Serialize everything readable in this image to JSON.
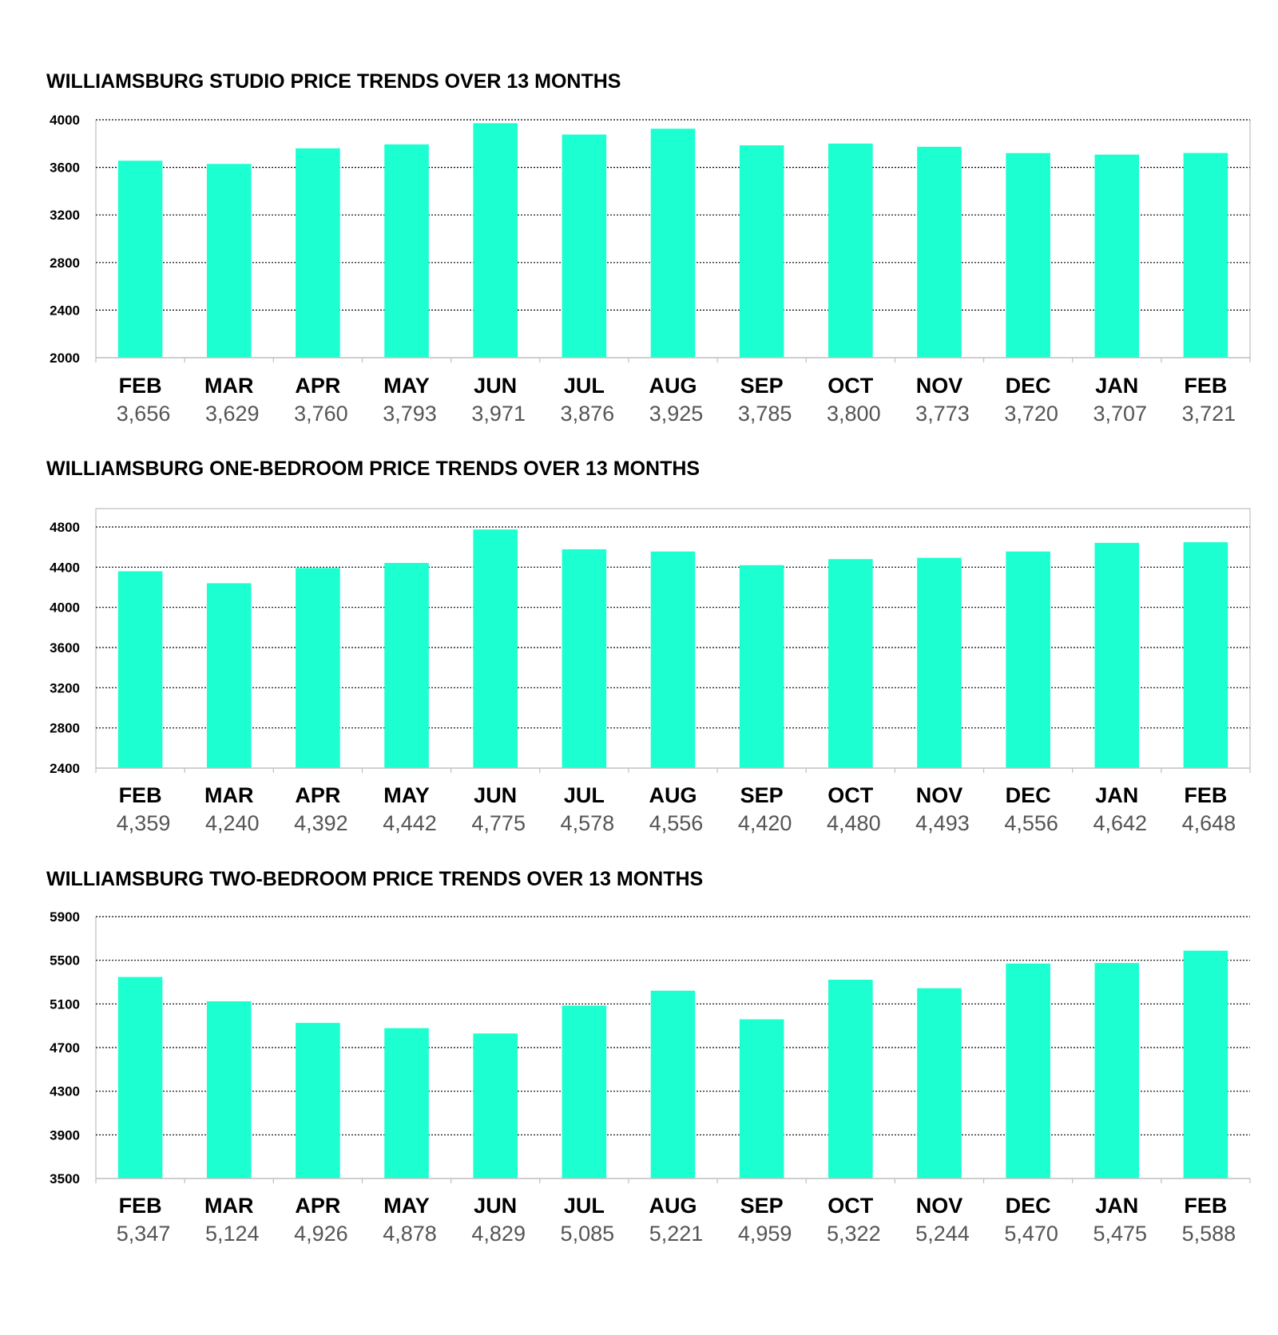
{
  "colors": {
    "bar": "#1cffd0",
    "grid": "#000000",
    "axis": "#bfbfbf",
    "value_text": "#555555"
  },
  "chart_data": [
    {
      "type": "bar",
      "title": "WILLIAMSBURG STUDIO PRICE TRENDS OVER 13 MONTHS",
      "categories": [
        "FEB",
        "MAR",
        "APR",
        "MAY",
        "JUN",
        "JUL",
        "AUG",
        "SEP",
        "OCT",
        "NOV",
        "DEC",
        "JAN",
        "FEB"
      ],
      "values": [
        3656,
        3629,
        3760,
        3793,
        3971,
        3876,
        3925,
        3785,
        3800,
        3773,
        3720,
        3707,
        3721
      ],
      "value_labels": [
        "3,656",
        "3,629",
        "3,760",
        "3,793",
        "3,971",
        "3,876",
        "3,925",
        "3,785",
        "3,800",
        "3,773",
        "3,720",
        "3,707",
        "3,721"
      ],
      "ylim": [
        2000,
        4000
      ],
      "yticks": [
        2000,
        2400,
        2800,
        3200,
        3600,
        4000
      ],
      "grid": true,
      "xlabel": "",
      "ylabel": ""
    },
    {
      "type": "bar",
      "title": "WILLIAMSBURG ONE-BEDROOM PRICE TRENDS OVER 13 MONTHS",
      "categories": [
        "FEB",
        "MAR",
        "APR",
        "MAY",
        "JUN",
        "JUL",
        "AUG",
        "SEP",
        "OCT",
        "NOV",
        "DEC",
        "JAN",
        "FEB"
      ],
      "values": [
        4359,
        4240,
        4392,
        4442,
        4775,
        4578,
        4556,
        4420,
        4480,
        4493,
        4556,
        4642,
        4648
      ],
      "value_labels": [
        "4,359",
        "4,240",
        "4,392",
        "4,442",
        "4,775",
        "4,578",
        "4,556",
        "4,420",
        "4,480",
        "4,493",
        "4,556",
        "4,642",
        "4,648"
      ],
      "ylim": [
        2400,
        4800
      ],
      "yticks": [
        2400,
        2800,
        3200,
        3600,
        4000,
        4400,
        4800
      ],
      "grid": true,
      "xlabel": "",
      "ylabel": ""
    },
    {
      "type": "bar",
      "title": "WILLIAMSBURG TWO-BEDROOM PRICE TRENDS OVER 13 MONTHS",
      "categories": [
        "FEB",
        "MAR",
        "APR",
        "MAY",
        "JUN",
        "JUL",
        "AUG",
        "SEP",
        "OCT",
        "NOV",
        "DEC",
        "JAN",
        "FEB"
      ],
      "values": [
        5347,
        5124,
        4926,
        4878,
        4829,
        5085,
        5221,
        4959,
        5322,
        5244,
        5470,
        5475,
        5588
      ],
      "value_labels": [
        "5,347",
        "5,124",
        "4,926",
        "4,878",
        "4,829",
        "5,085",
        "5,221",
        "4,959",
        "5,322",
        "5,244",
        "5,470",
        "5,475",
        "5,588"
      ],
      "ylim": [
        3500,
        5900
      ],
      "yticks": [
        3500,
        3900,
        4300,
        4700,
        5100,
        5500,
        5900
      ],
      "grid": true,
      "xlabel": "",
      "ylabel": ""
    }
  ]
}
